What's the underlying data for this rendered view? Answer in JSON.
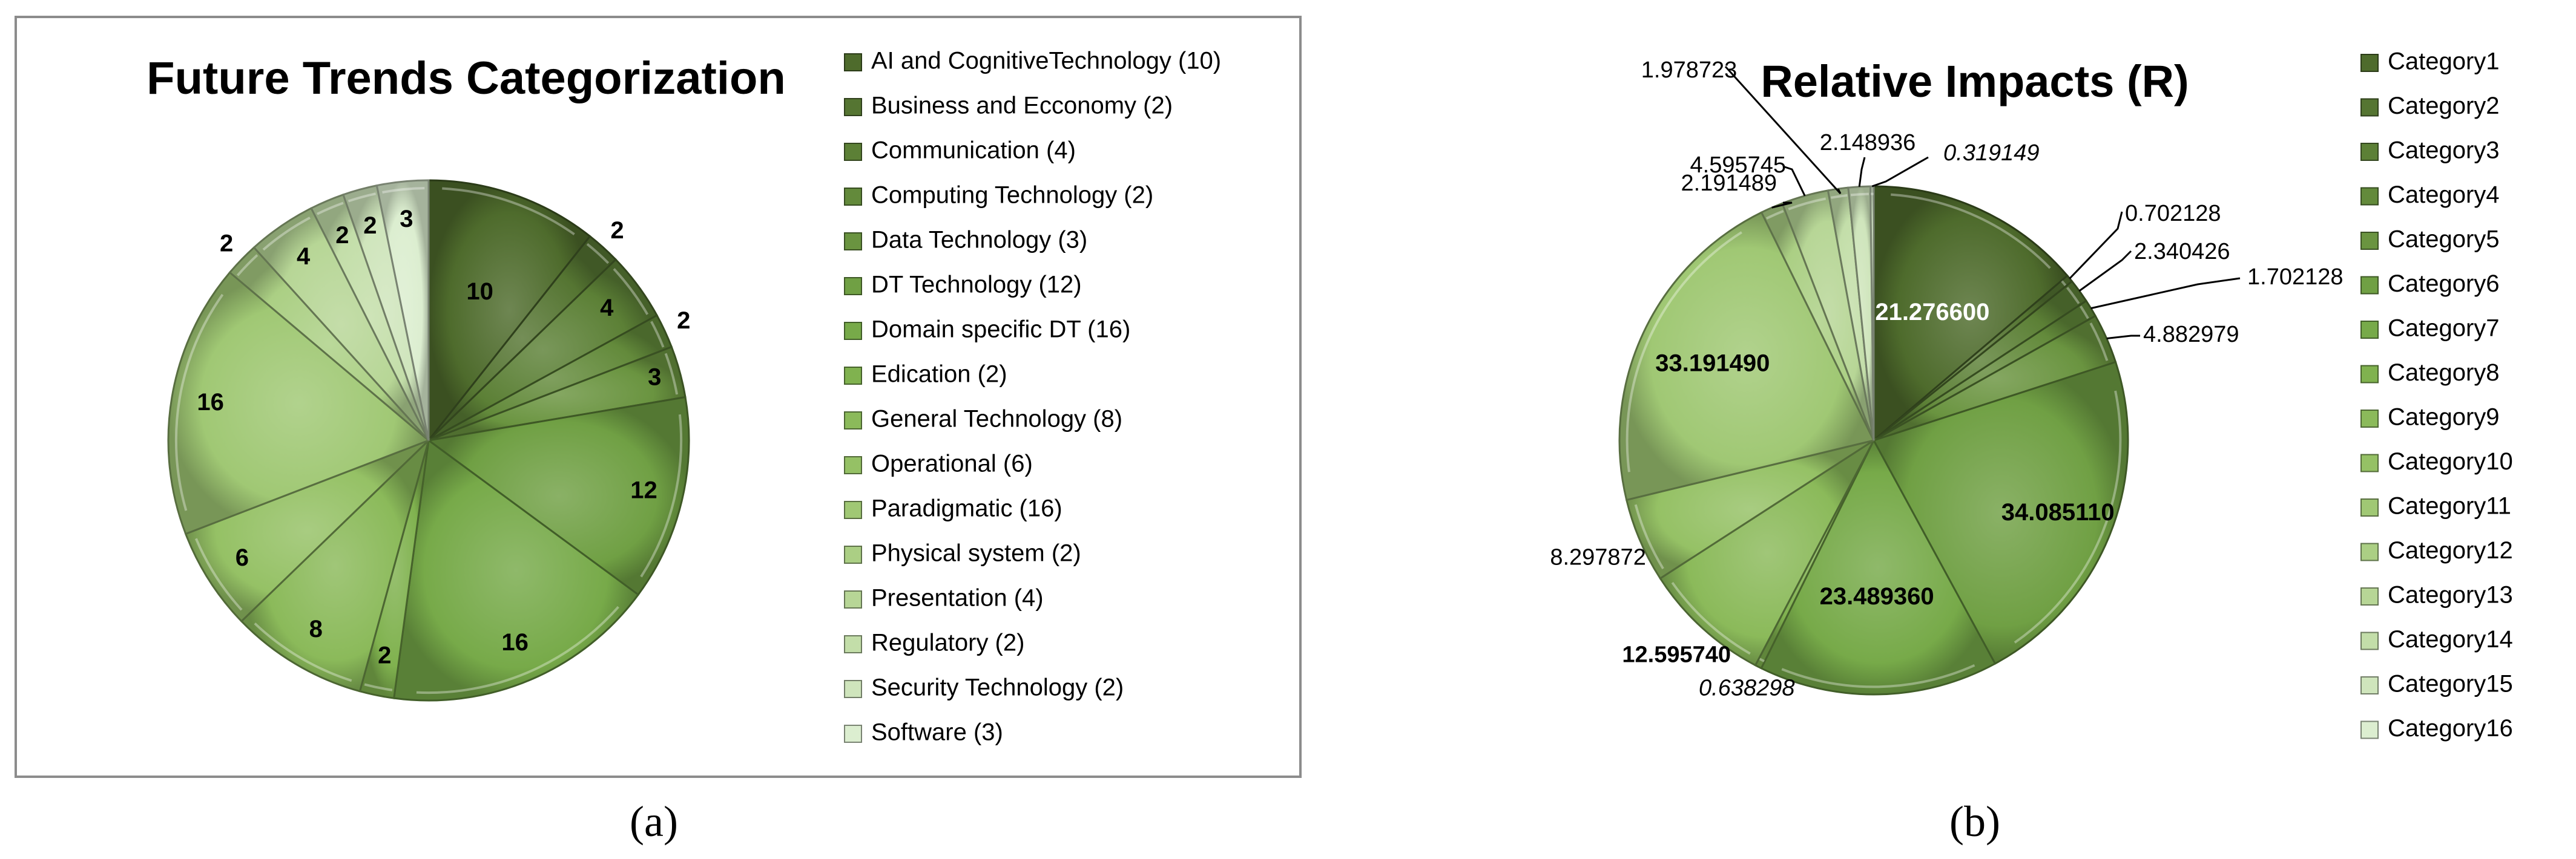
{
  "panel_labels": [
    "(a)",
    "(b)"
  ],
  "chart_data": [
    {
      "type": "pie",
      "title": "Future Trends Categorization",
      "legend_position": "right",
      "categories": [
        "AI and CognitiveTechnology (10)",
        "Business and Ecconomy (2)",
        "Communication (4)",
        "Computing Technology (2)",
        "Data Technology (3)",
        "DT Technology (12)",
        "Domain specific DT (16)",
        "Edication (2)",
        "General Technology (8)",
        "Operational (6)",
        "Paradigmatic (16)",
        "Physical system (2)",
        "Presentation (4)",
        "Regulatory (2)",
        "Security Technology (2)",
        "Software (3)"
      ],
      "values": [
        10,
        2,
        4,
        2,
        3,
        12,
        16,
        2,
        8,
        6,
        16,
        2,
        4,
        2,
        2,
        3
      ],
      "data_labels": [
        "10",
        "2",
        "4",
        "2",
        "3",
        "12",
        "16",
        "2",
        "8",
        "6",
        "16",
        "2",
        "4",
        "2",
        "2",
        "3"
      ],
      "colors": [
        "#4e6b2c",
        "#557532",
        "#5c8036",
        "#638a3b",
        "#6a9440",
        "#70a044",
        "#77aa49",
        "#80b24f",
        "#8bba5a",
        "#95c165",
        "#a0c874",
        "#abcf84",
        "#b7d696",
        "#c3dea9",
        "#cfe5bc",
        "#dceed0"
      ]
    },
    {
      "type": "pie",
      "title": "Relative Impacts (R)",
      "legend_position": "right",
      "categories": [
        "Category1",
        "Category2",
        "Category3",
        "Category4",
        "Category5",
        "Category6",
        "Category7",
        "Category8",
        "Category9",
        "Category10",
        "Category11",
        "Category12",
        "Category13",
        "Category14",
        "Category15",
        "Category16"
      ],
      "values": [
        21.2766,
        0.702128,
        2.340426,
        1.702128,
        4.882979,
        34.08511,
        23.48936,
        0.638298,
        12.59574,
        8.297872,
        33.19149,
        2.191489,
        4.595745,
        1.978723,
        2.148936,
        0.319149
      ],
      "data_labels": [
        "21.276600",
        "0.702128",
        "2.340426",
        "1.702128",
        "4.882979",
        "34.085110",
        "23.489360",
        "0.638298",
        "12.595740",
        "8.297872",
        "33.191490",
        "2.191489",
        "4.595745",
        "1.978723",
        "2.148936",
        "0.319149"
      ],
      "colors": [
        "#4e6b2c",
        "#557532",
        "#5c8036",
        "#638a3b",
        "#6a9440",
        "#70a044",
        "#77aa49",
        "#80b24f",
        "#8bba5a",
        "#95c165",
        "#a0c874",
        "#abcf84",
        "#b7d696",
        "#c3dea9",
        "#cfe5bc",
        "#dceed0"
      ]
    }
  ]
}
